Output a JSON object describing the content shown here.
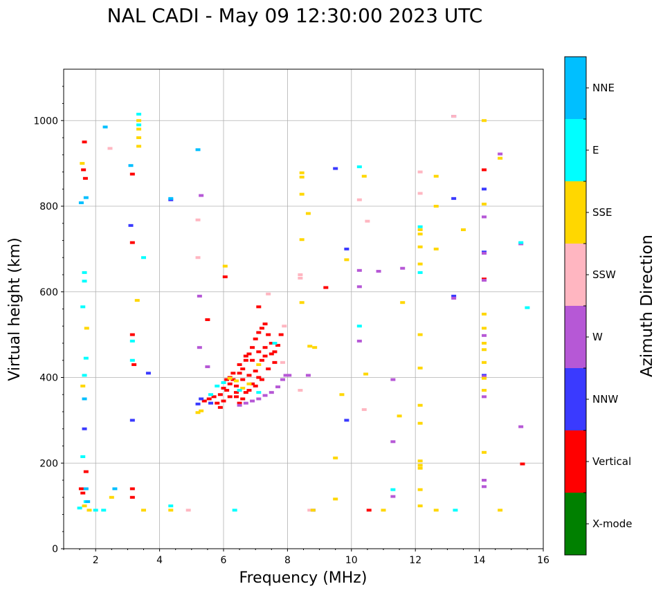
{
  "chart_data": {
    "type": "scatter",
    "title": "NAL CADI - May 09 12:30:00 2023 UTC",
    "xlabel": "Frequency (MHz)",
    "ylabel": "Virtual height (km)",
    "xlim": [
      1,
      16
    ],
    "ylim": [
      0,
      1120
    ],
    "xticks": [
      2,
      4,
      6,
      8,
      10,
      12,
      14,
      16
    ],
    "yticks": [
      0,
      200,
      400,
      600,
      800,
      1000
    ],
    "grid": true,
    "colorbar": {
      "title": "Azimuth Direction",
      "categories": [
        {
          "name": "X-mode",
          "color": "#008000"
        },
        {
          "name": "Vertical",
          "color": "#ff0000"
        },
        {
          "name": "NNW",
          "color": "#3a3aff"
        },
        {
          "name": "W",
          "color": "#b658d6"
        },
        {
          "name": "SSW",
          "color": "#ffb6c1"
        },
        {
          "name": "SSE",
          "color": "#ffd700"
        },
        {
          "name": "E",
          "color": "#00ffff"
        },
        {
          "name": "NNE",
          "color": "#00bfff"
        }
      ]
    },
    "series": [
      {
        "name": "Vertical",
        "points": [
          [
            1.65,
            950
          ],
          [
            1.62,
            885
          ],
          [
            1.68,
            865
          ],
          [
            1.55,
            140
          ],
          [
            1.6,
            130
          ],
          [
            1.7,
            180
          ],
          [
            3.15,
            875
          ],
          [
            3.15,
            715
          ],
          [
            3.15,
            500
          ],
          [
            3.2,
            430
          ],
          [
            3.15,
            140
          ],
          [
            3.15,
            120
          ],
          [
            5.5,
            535
          ],
          [
            6.05,
            635
          ],
          [
            9.2,
            610
          ],
          [
            10.55,
            90
          ],
          [
            14.15,
            885
          ],
          [
            14.15,
            630
          ],
          [
            15.35,
            198
          ],
          [
            5.4,
            345
          ],
          [
            5.55,
            350
          ],
          [
            5.7,
            355
          ],
          [
            5.8,
            340
          ],
          [
            5.9,
            360
          ],
          [
            6.0,
            375
          ],
          [
            6.1,
            370
          ],
          [
            6.2,
            385
          ],
          [
            6.3,
            395
          ],
          [
            6.4,
            380
          ],
          [
            6.5,
            410
          ],
          [
            6.6,
            420
          ],
          [
            6.7,
            440
          ],
          [
            6.8,
            455
          ],
          [
            6.9,
            470
          ],
          [
            7.0,
            490
          ],
          [
            7.1,
            505
          ],
          [
            7.2,
            515
          ],
          [
            7.3,
            525
          ],
          [
            7.4,
            500
          ],
          [
            7.5,
            480
          ],
          [
            7.6,
            460
          ],
          [
            7.7,
            475
          ],
          [
            7.8,
            500
          ],
          [
            5.9,
            330
          ],
          [
            6.0,
            345
          ],
          [
            6.2,
            355
          ],
          [
            6.4,
            365
          ],
          [
            6.6,
            350
          ],
          [
            6.8,
            370
          ],
          [
            7.0,
            380
          ],
          [
            7.2,
            395
          ],
          [
            7.4,
            420
          ],
          [
            7.6,
            435
          ],
          [
            6.3,
            410
          ],
          [
            6.5,
            430
          ],
          [
            6.7,
            450
          ],
          [
            6.9,
            440
          ],
          [
            7.1,
            460
          ],
          [
            7.3,
            470
          ],
          [
            6.2,
            400
          ],
          [
            6.1,
            395
          ],
          [
            6.6,
            395
          ],
          [
            6.8,
            405
          ],
          [
            7.0,
            415
          ],
          [
            7.2,
            440
          ],
          [
            6.4,
            355
          ],
          [
            6.5,
            340
          ],
          [
            6.7,
            365
          ],
          [
            6.9,
            385
          ],
          [
            7.1,
            400
          ],
          [
            7.3,
            450
          ],
          [
            7.5,
            455
          ],
          [
            7.1,
            565
          ]
        ]
      },
      {
        "name": "NNW",
        "points": [
          [
            13.2,
            1010
          ],
          [
            3.1,
            755
          ],
          [
            4.35,
            815
          ],
          [
            1.65,
            280
          ],
          [
            3.65,
            410
          ],
          [
            3.15,
            300
          ],
          [
            9.5,
            888
          ],
          [
            9.85,
            700
          ],
          [
            9.85,
            300
          ],
          [
            13.2,
            818
          ],
          [
            13.2,
            590
          ],
          [
            14.15,
            840
          ],
          [
            14.15,
            693
          ],
          [
            14.15,
            405
          ],
          [
            8.8,
            90
          ],
          [
            5.2,
            338
          ],
          [
            5.3,
            350
          ],
          [
            5.6,
            340
          ]
        ]
      },
      {
        "name": "W",
        "points": [
          [
            5.3,
            825
          ],
          [
            5.25,
            470
          ],
          [
            5.25,
            590
          ],
          [
            5.5,
            425
          ],
          [
            10.25,
            650
          ],
          [
            10.25,
            612
          ],
          [
            10.25,
            485
          ],
          [
            10.85,
            648
          ],
          [
            11.3,
            395
          ],
          [
            11.3,
            250
          ],
          [
            11.3,
            122
          ],
          [
            11.6,
            655
          ],
          [
            13.2,
            585
          ],
          [
            14.15,
            775
          ],
          [
            14.15,
            690
          ],
          [
            14.15,
            627
          ],
          [
            14.15,
            498
          ],
          [
            14.15,
            402
          ],
          [
            14.15,
            355
          ],
          [
            14.15,
            160
          ],
          [
            14.15,
            145
          ],
          [
            14.65,
            922
          ],
          [
            15.3,
            712
          ],
          [
            15.3,
            285
          ],
          [
            8.65,
            405
          ],
          [
            8.05,
            405
          ],
          [
            6.5,
            335
          ],
          [
            6.7,
            340
          ],
          [
            6.9,
            345
          ],
          [
            7.1,
            350
          ],
          [
            7.3,
            358
          ],
          [
            7.5,
            365
          ],
          [
            7.7,
            378
          ],
          [
            7.85,
            395
          ],
          [
            7.95,
            405
          ]
        ]
      },
      {
        "name": "SSW",
        "points": [
          [
            2.45,
            935
          ],
          [
            5.2,
            768
          ],
          [
            5.2,
            680
          ],
          [
            7.4,
            595
          ],
          [
            7.9,
            520
          ],
          [
            8.4,
            370
          ],
          [
            8.4,
            640
          ],
          [
            8.4,
            632
          ],
          [
            10.25,
            815
          ],
          [
            10.5,
            765
          ],
          [
            10.4,
            325
          ],
          [
            12.15,
            880
          ],
          [
            12.15,
            830
          ],
          [
            13.2,
            1010
          ],
          [
            8.7,
            90
          ],
          [
            4.9,
            90
          ],
          [
            7.85,
            435
          ]
        ]
      },
      {
        "name": "SSE",
        "points": [
          [
            3.35,
            1000
          ],
          [
            3.35,
            980
          ],
          [
            3.35,
            960
          ],
          [
            3.35,
            940
          ],
          [
            3.3,
            580
          ],
          [
            6.05,
            660
          ],
          [
            8.45,
            878
          ],
          [
            8.45,
            868
          ],
          [
            8.45,
            828
          ],
          [
            8.45,
            722
          ],
          [
            8.45,
            575
          ],
          [
            8.65,
            783
          ],
          [
            8.7,
            473
          ],
          [
            8.85,
            470
          ],
          [
            9.5,
            212
          ],
          [
            9.5,
            116
          ],
          [
            9.85,
            675
          ],
          [
            10.4,
            870
          ],
          [
            10.45,
            408
          ],
          [
            11.6,
            575
          ],
          [
            11.5,
            310
          ],
          [
            12.15,
            745
          ],
          [
            12.15,
            735
          ],
          [
            12.15,
            705
          ],
          [
            12.15,
            665
          ],
          [
            12.15,
            500
          ],
          [
            12.15,
            422
          ],
          [
            12.15,
            335
          ],
          [
            12.15,
            293
          ],
          [
            12.15,
            205
          ],
          [
            12.15,
            195
          ],
          [
            12.15,
            188
          ],
          [
            12.15,
            138
          ],
          [
            12.15,
            100
          ],
          [
            12.65,
            870
          ],
          [
            12.65,
            800
          ],
          [
            12.65,
            700
          ],
          [
            13.5,
            745
          ],
          [
            14.15,
            1000
          ],
          [
            14.15,
            805
          ],
          [
            14.15,
            548
          ],
          [
            14.15,
            515
          ],
          [
            14.15,
            480
          ],
          [
            14.15,
            465
          ],
          [
            14.15,
            435
          ],
          [
            14.15,
            398
          ],
          [
            14.15,
            370
          ],
          [
            14.15,
            225
          ],
          [
            14.65,
            912
          ],
          [
            14.65,
            90
          ],
          [
            1.58,
            900
          ],
          [
            1.72,
            515
          ],
          [
            1.6,
            380
          ],
          [
            1.65,
            100
          ],
          [
            1.8,
            90
          ],
          [
            2.5,
            120
          ],
          [
            3.5,
            90
          ],
          [
            4.35,
            90
          ],
          [
            5.2,
            318
          ],
          [
            5.3,
            322
          ],
          [
            6.2,
            398
          ],
          [
            6.4,
            392
          ],
          [
            6.6,
            375
          ],
          [
            6.8,
            385
          ],
          [
            7.1,
            430
          ],
          [
            8.8,
            90
          ],
          [
            9.7,
            360
          ],
          [
            11.0,
            90
          ],
          [
            12.65,
            90
          ]
        ]
      },
      {
        "name": "E",
        "points": [
          [
            3.35,
            1015
          ],
          [
            3.35,
            990
          ],
          [
            1.65,
            645
          ],
          [
            1.65,
            625
          ],
          [
            1.7,
            445
          ],
          [
            1.65,
            405
          ],
          [
            1.6,
            565
          ],
          [
            1.6,
            215
          ],
          [
            3.5,
            680
          ],
          [
            3.15,
            485
          ],
          [
            3.15,
            440
          ],
          [
            2.0,
            90
          ],
          [
            2.25,
            90
          ],
          [
            10.25,
            892
          ],
          [
            10.25,
            520
          ],
          [
            11.3,
            138
          ],
          [
            12.15,
            752
          ],
          [
            12.15,
            645
          ],
          [
            13.25,
            90
          ],
          [
            15.3,
            715
          ],
          [
            15.5,
            563
          ],
          [
            1.5,
            95
          ],
          [
            1.7,
            110
          ],
          [
            4.35,
            100
          ],
          [
            6.35,
            90
          ],
          [
            5.6,
            360
          ],
          [
            5.8,
            380
          ],
          [
            6.0,
            388
          ],
          [
            6.5,
            370
          ],
          [
            7.1,
            365
          ],
          [
            7.6,
            480
          ]
        ]
      },
      {
        "name": "NNE",
        "points": [
          [
            2.3,
            985
          ],
          [
            3.1,
            895
          ],
          [
            1.7,
            820
          ],
          [
            1.55,
            808
          ],
          [
            5.2,
            932
          ],
          [
            1.65,
            350
          ],
          [
            1.7,
            140
          ],
          [
            1.75,
            110
          ],
          [
            2.6,
            140
          ],
          [
            4.35,
            818
          ]
        ]
      }
    ]
  }
}
